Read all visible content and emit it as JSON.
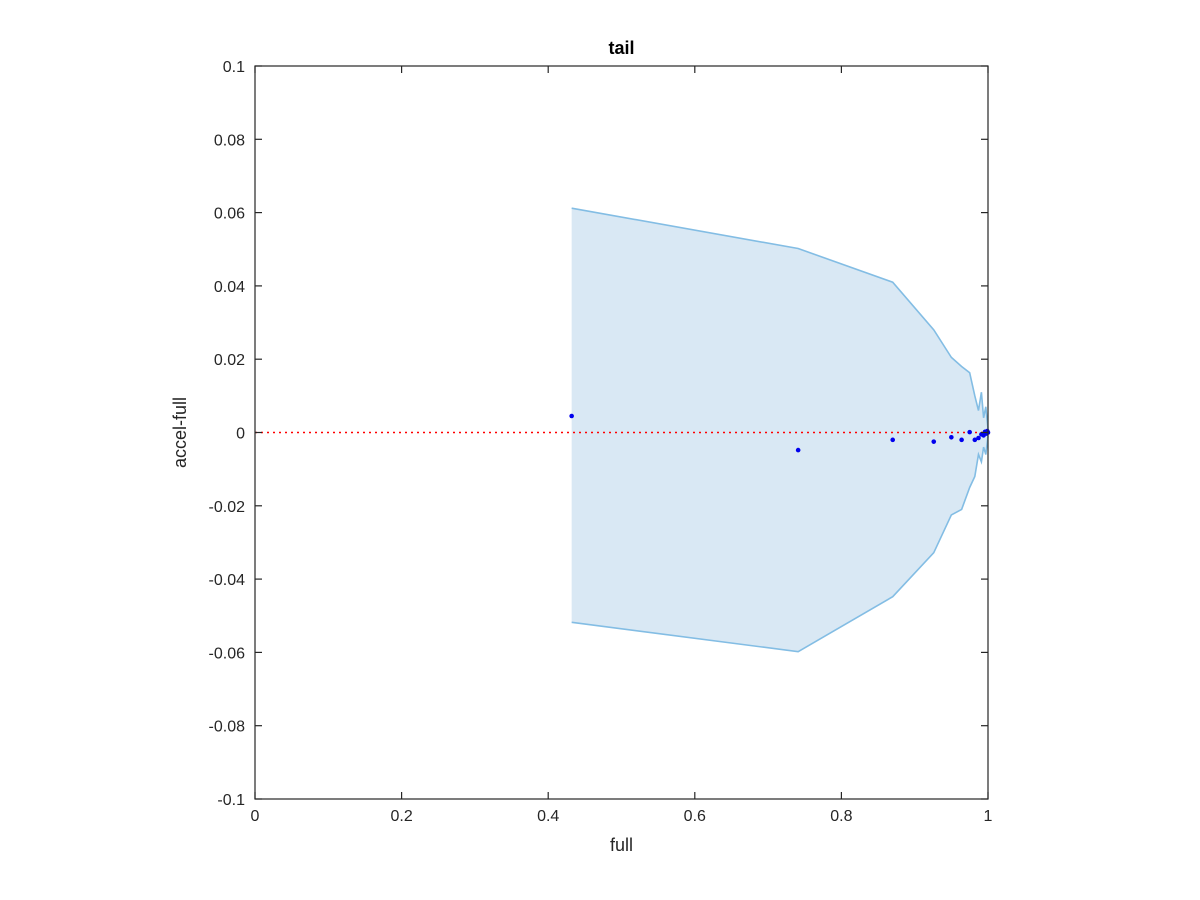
{
  "chart_data": {
    "type": "scatter",
    "title": "tail",
    "xlabel": "full",
    "ylabel": "accel-full",
    "xlim": [
      0,
      1
    ],
    "ylim": [
      -0.1,
      0.1
    ],
    "grid": false,
    "x_ticks": [
      {
        "value": 0,
        "label": "0"
      },
      {
        "value": 0.2,
        "label": "0.2"
      },
      {
        "value": 0.4,
        "label": "0.4"
      },
      {
        "value": 0.6,
        "label": "0.6"
      },
      {
        "value": 0.8,
        "label": "0.8"
      },
      {
        "value": 1,
        "label": "1"
      }
    ],
    "y_ticks": [
      {
        "value": 0.1,
        "label": "0.1"
      },
      {
        "value": 0.08,
        "label": "0.08"
      },
      {
        "value": 0.06,
        "label": "0.06"
      },
      {
        "value": 0.04,
        "label": "0.04"
      },
      {
        "value": 0.02,
        "label": "0.02"
      },
      {
        "value": 0,
        "label": "0"
      },
      {
        "value": -0.02,
        "label": "-0.02"
      },
      {
        "value": -0.04,
        "label": "-0.04"
      },
      {
        "value": -0.06,
        "label": "-0.06"
      },
      {
        "value": -0.08,
        "label": "-0.08"
      },
      {
        "value": -0.1,
        "label": "-0.1"
      }
    ],
    "points": [
      {
        "x": 0.432,
        "y": 0.0045
      },
      {
        "x": 0.741,
        "y": -0.0048
      },
      {
        "x": 0.87,
        "y": -0.002
      },
      {
        "x": 0.926,
        "y": -0.0025
      },
      {
        "x": 0.95,
        "y": -0.0013
      },
      {
        "x": 0.964,
        "y": -0.002
      },
      {
        "x": 0.975,
        "y": 0.0001
      },
      {
        "x": 0.982,
        "y": -0.002
      },
      {
        "x": 0.987,
        "y": -0.0015
      },
      {
        "x": 0.991,
        "y": -0.0005
      },
      {
        "x": 0.994,
        "y": -0.0008
      },
      {
        "x": 0.996,
        "y": 0.0002
      },
      {
        "x": 0.998,
        "y": -0.0003
      },
      {
        "x": 0.999,
        "y": 0.0004
      },
      {
        "x": 1.0,
        "y": 0.0
      }
    ],
    "band_upper": [
      {
        "x": 0.432,
        "y": 0.0612
      },
      {
        "x": 0.741,
        "y": 0.0502
      },
      {
        "x": 0.87,
        "y": 0.041
      },
      {
        "x": 0.926,
        "y": 0.028
      },
      {
        "x": 0.95,
        "y": 0.0205
      },
      {
        "x": 0.964,
        "y": 0.018
      },
      {
        "x": 0.975,
        "y": 0.0163
      },
      {
        "x": 0.982,
        "y": 0.01
      },
      {
        "x": 0.987,
        "y": 0.006
      },
      {
        "x": 0.991,
        "y": 0.011
      },
      {
        "x": 0.994,
        "y": 0.004
      },
      {
        "x": 0.997,
        "y": 0.007
      },
      {
        "x": 1.0,
        "y": 0.001
      }
    ],
    "band_lower": [
      {
        "x": 0.432,
        "y": -0.0518
      },
      {
        "x": 0.741,
        "y": -0.0598
      },
      {
        "x": 0.87,
        "y": -0.0448
      },
      {
        "x": 0.926,
        "y": -0.0328
      },
      {
        "x": 0.95,
        "y": -0.0225
      },
      {
        "x": 0.964,
        "y": -0.021
      },
      {
        "x": 0.975,
        "y": -0.015
      },
      {
        "x": 0.982,
        "y": -0.012
      },
      {
        "x": 0.987,
        "y": -0.006
      },
      {
        "x": 0.991,
        "y": -0.008
      },
      {
        "x": 0.994,
        "y": -0.004
      },
      {
        "x": 0.997,
        "y": -0.006
      },
      {
        "x": 1.0,
        "y": -0.001
      }
    ],
    "reference_line": {
      "y": 0,
      "style": "dotted"
    },
    "colors": {
      "points": "#0000ee",
      "band_fill": "#d9e8f4",
      "band_edge": "#83bde4",
      "reference_line": "#ff0000",
      "axes": "#262626"
    }
  }
}
